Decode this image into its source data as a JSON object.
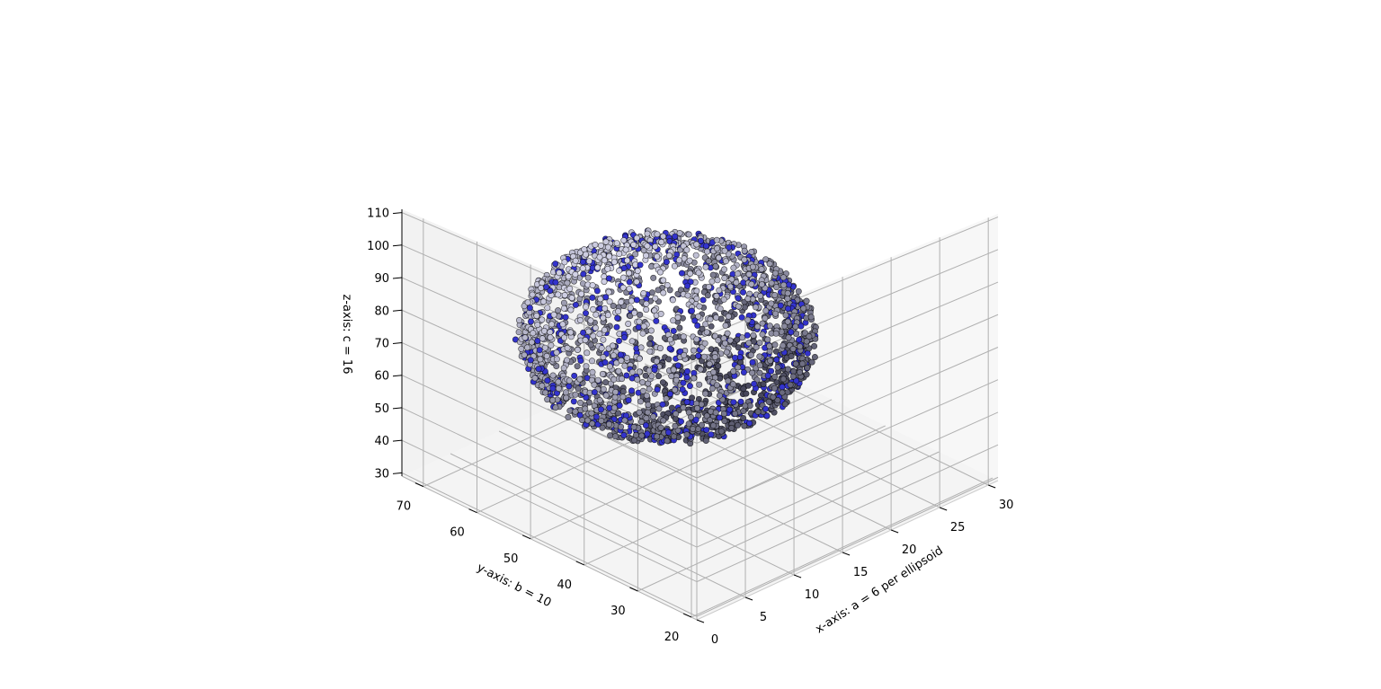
{
  "chart_data": {
    "type": "scatter",
    "projection": "3d",
    "title": "",
    "xlabel": "x-axis: a = 6 per ellipsoid",
    "ylabel": "y-axis: b = 10",
    "zlabel": "z-axis: c = 16",
    "x_ticks": [
      "0",
      "5",
      "10",
      "15",
      "20",
      "25",
      "30"
    ],
    "y_ticks": [
      "20",
      "30",
      "40",
      "50",
      "60",
      "70"
    ],
    "z_ticks": [
      "30",
      "40",
      "50",
      "60",
      "70",
      "80",
      "90",
      "100",
      "110"
    ],
    "xlim": [
      0,
      31
    ],
    "ylim": [
      19,
      74
    ],
    "zlim": [
      29,
      111
    ],
    "grid": true,
    "pane_color": "#f2f2f2",
    "grid_color": "#b0b0b0",
    "colors": {
      "surface_light": "#e8e8f0",
      "surface_dark": "#2a2a3a",
      "marker": "#3333cc",
      "edge": "#000000"
    },
    "series": [
      {
        "marker": "ellipsoid",
        "count": 2400,
        "center": [
          14,
          50,
          72
        ],
        "semi_axes": [
          11,
          20,
          26
        ]
      }
    ]
  }
}
